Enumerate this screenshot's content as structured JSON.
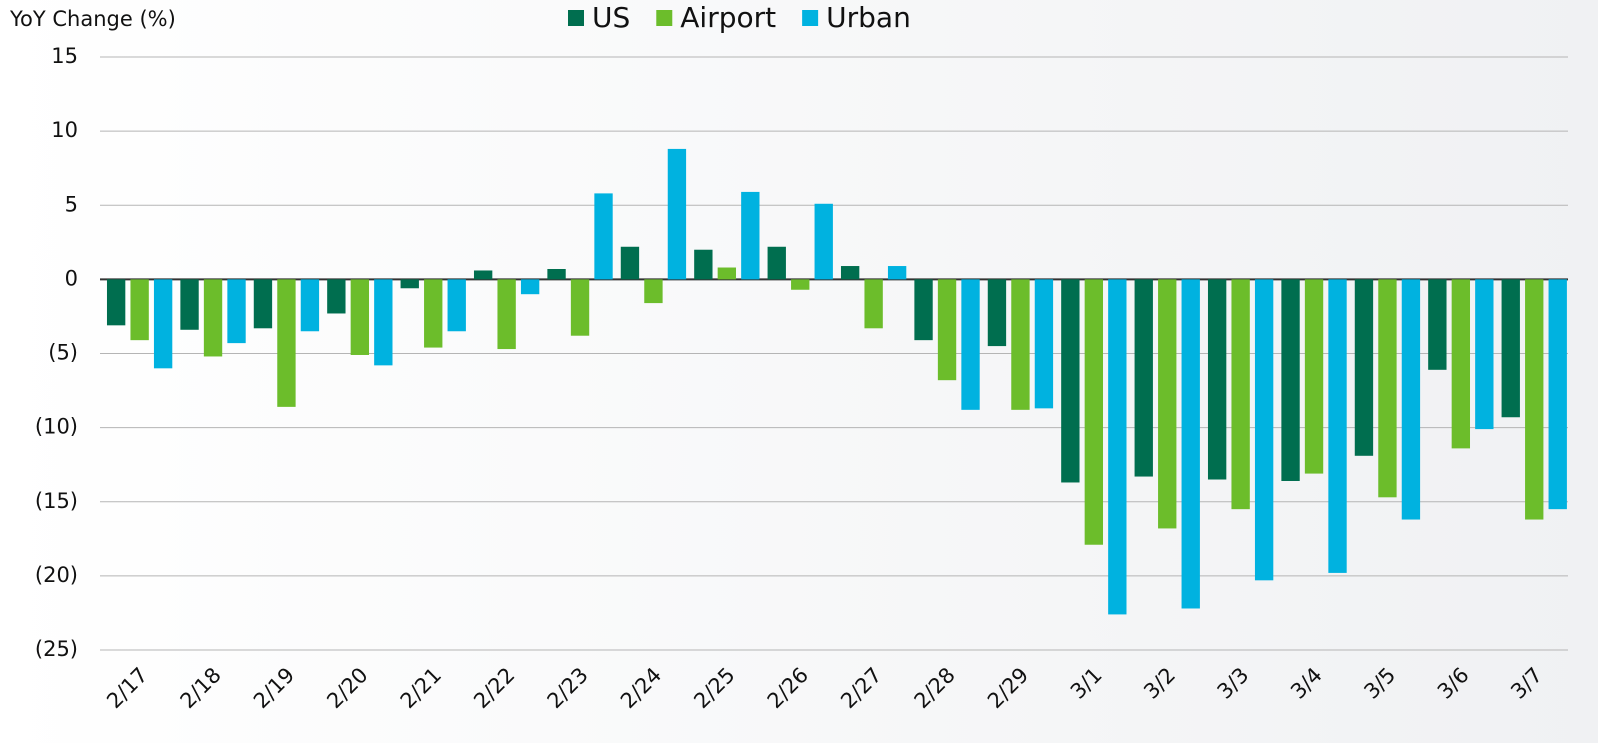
{
  "chart_data": {
    "type": "bar",
    "ylabel": "YoY Change (%)",
    "categories": [
      "2/17",
      "2/18",
      "2/19",
      "2/20",
      "2/21",
      "2/22",
      "2/23",
      "2/24",
      "2/25",
      "2/26",
      "2/27",
      "2/28",
      "2/29",
      "3/1",
      "3/2",
      "3/3",
      "3/4",
      "3/5",
      "3/6",
      "3/7"
    ],
    "series": [
      {
        "name": "US",
        "color": "#006e4f",
        "values": [
          -3.1,
          -3.4,
          -3.3,
          -2.3,
          -0.6,
          0.6,
          0.7,
          2.2,
          2.0,
          2.2,
          0.9,
          -4.1,
          -4.5,
          -13.7,
          -13.3,
          -13.5,
          -13.6,
          -11.9,
          -6.1,
          -9.3
        ]
      },
      {
        "name": "Airport",
        "color": "#6cbd2b",
        "values": [
          -4.1,
          -5.2,
          -8.6,
          -5.1,
          -4.6,
          -4.7,
          -3.8,
          -1.6,
          0.8,
          -0.7,
          -3.3,
          -6.8,
          -8.8,
          -17.9,
          -16.8,
          -15.5,
          -13.1,
          -14.7,
          -11.4,
          -16.2
        ]
      },
      {
        "name": "Urban",
        "color": "#00b2e0",
        "values": [
          -6.0,
          -4.3,
          -3.5,
          -5.8,
          -3.5,
          -1.0,
          5.8,
          8.8,
          5.9,
          5.1,
          0.9,
          -8.8,
          -8.7,
          -22.6,
          -22.2,
          -20.3,
          -19.8,
          -16.2,
          -10.1,
          -15.5
        ]
      }
    ],
    "ylim": [
      -25,
      15
    ],
    "yticks": [
      15,
      10,
      5,
      0,
      {
        "value": -5,
        "label": "(5)"
      },
      {
        "value": -10,
        "label": "(10)"
      },
      {
        "value": -15,
        "label": "(15)"
      },
      {
        "value": -20,
        "label": "(20)"
      },
      {
        "value": -25,
        "label": "(25)"
      }
    ],
    "grid": true,
    "legend": "top"
  }
}
